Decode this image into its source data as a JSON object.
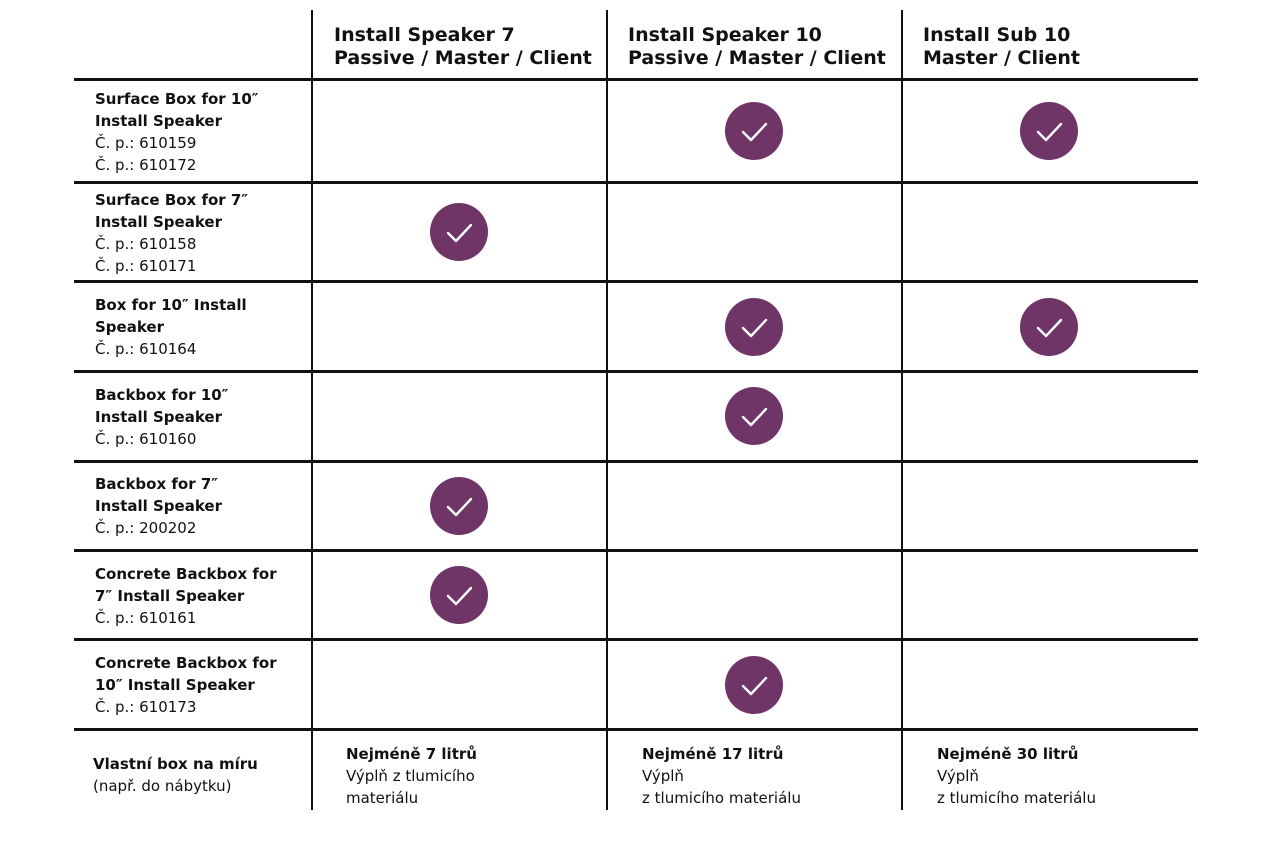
{
  "table": {
    "columns": [
      {
        "line1": "Install Speaker 7",
        "line2": "Passive / Master / Client"
      },
      {
        "line1": "Install Speaker 10",
        "line2": "Passive / Master / Client"
      },
      {
        "line1": "Install Sub 10",
        "line2": "Master / Client"
      }
    ],
    "rows": [
      {
        "name_lines": [
          "Surface Box for 10″",
          "Install Speaker"
        ],
        "part_numbers": [
          "Č. p.: 610159",
          "Č. p.: 610172"
        ],
        "checks": [
          false,
          true,
          true
        ]
      },
      {
        "name_lines": [
          "Surface Box for 7″",
          "Install Speaker"
        ],
        "part_numbers": [
          "Č. p.: 610158",
          "Č. p.: 610171"
        ],
        "checks": [
          true,
          false,
          false
        ]
      },
      {
        "name_lines": [
          "Box for 10″ Install",
          "Speaker"
        ],
        "part_numbers": [
          "Č. p.: 610164"
        ],
        "checks": [
          false,
          true,
          true
        ]
      },
      {
        "name_lines": [
          "Backbox for 10″",
          "Install Speaker"
        ],
        "part_numbers": [
          "Č. p.: 610160"
        ],
        "checks": [
          false,
          true,
          false
        ]
      },
      {
        "name_lines": [
          "Backbox for 7″",
          "Install Speaker"
        ],
        "part_numbers": [
          "Č. p.: 200202"
        ],
        "checks": [
          true,
          false,
          false
        ]
      },
      {
        "name_lines": [
          "Concrete Backbox for",
          "7″ Install Speaker"
        ],
        "part_numbers": [
          "Č. p.: 610161"
        ],
        "checks": [
          true,
          false,
          false
        ]
      },
      {
        "name_lines": [
          "Concrete Backbox for",
          "10″ Install Speaker"
        ],
        "part_numbers": [
          "Č. p.: 610173"
        ],
        "checks": [
          false,
          true,
          false
        ]
      }
    ],
    "footer": {
      "label_bold": "Vlastní box na míru",
      "label_note": "(např. do nábytku)",
      "cells": [
        {
          "bold": "Nejméně 7 litrů",
          "lines": [
            "Výplň z tlumicího",
            "materiálu"
          ]
        },
        {
          "bold": "Nejméně 17 litrů",
          "lines": [
            "Výplň",
            "z tlumicího materiálu"
          ]
        },
        {
          "bold": "Nejméně 30 litrů",
          "lines": [
            "Výplň",
            "z tlumicího materiálu"
          ]
        }
      ]
    },
    "check_icon": "checkmark-icon",
    "colors": {
      "check_fill": "#6e3566",
      "lines": "#111111"
    }
  }
}
